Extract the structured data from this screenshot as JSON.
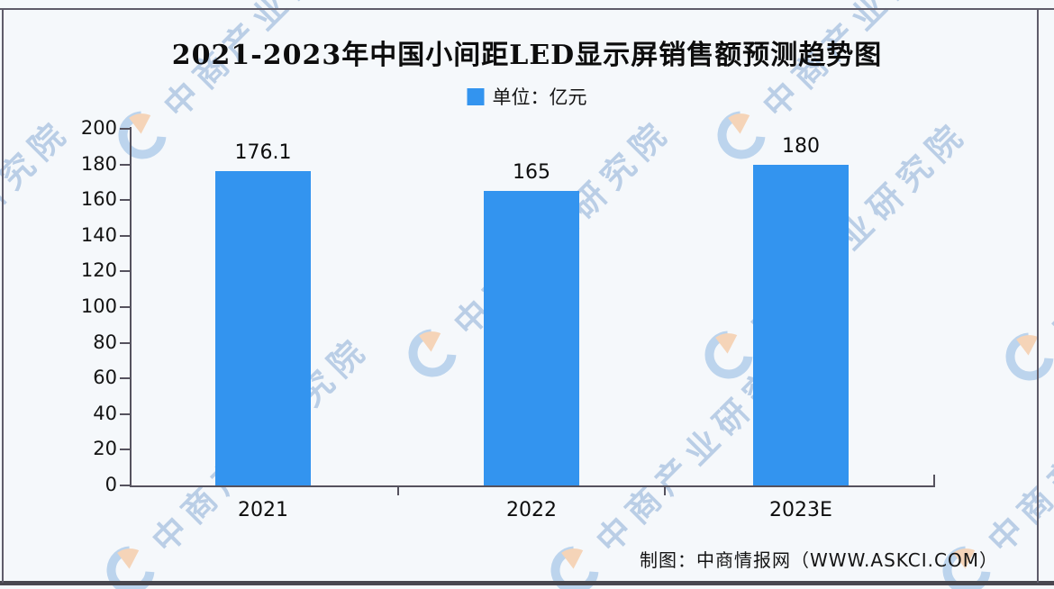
{
  "watermark": {
    "text": "中商产业研究院"
  },
  "footer": {
    "credit": "制图：中商情报网（WWW.ASKCI.COM）"
  },
  "chart_data": {
    "type": "bar",
    "title": "2021-2023年中国小间距LED显示屏销售额预测趋势图",
    "unit_label": "单位：亿元",
    "categories": [
      "2021",
      "2022",
      "2023E"
    ],
    "values": [
      176.1,
      165,
      180
    ],
    "value_labels": [
      "176.1",
      "165",
      "180"
    ],
    "ylim": [
      0,
      200
    ],
    "ytick_step": 20,
    "grid": false,
    "legend_position": "top-center",
    "bar_color": "#3394ef",
    "watermark_blue": "#aac9e9",
    "watermark_orange": "#f6c9a2"
  }
}
